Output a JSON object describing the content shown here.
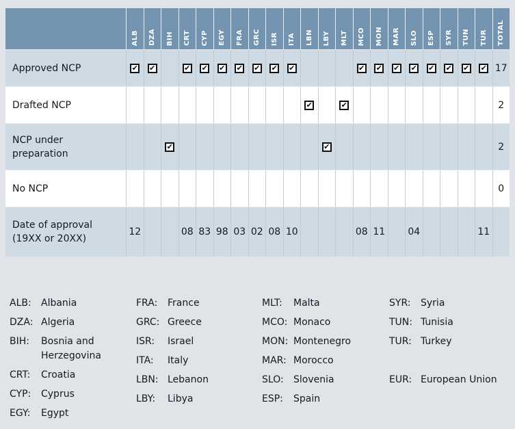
{
  "colors": {
    "header_bg": "#7294b0",
    "shaded_row_bg": "#cfdbe4",
    "plain_row_bg": "#ffffff",
    "page_bg": "#e0e4e8",
    "grid_line": "#c5c9cc",
    "header_text": "#ffffff",
    "body_text": "#15181e"
  },
  "chart_data": {
    "type": "table",
    "title": "",
    "columns": [
      "ALB",
      "DZA",
      "BIH",
      "CRT",
      "CYP",
      "EGY",
      "FRA",
      "GRC",
      "ISR",
      "ITA",
      "LBN",
      "LBY",
      "MLT",
      "MCO",
      "MON",
      "MAR",
      "SLO",
      "ESP",
      "SYR",
      "TUN",
      "TUR"
    ],
    "total_column": "TOTAL",
    "rows": [
      {
        "label": "Approved NCP",
        "kind": "check",
        "checked": [
          "ALB",
          "DZA",
          "CRT",
          "CYP",
          "EGY",
          "FRA",
          "GRC",
          "ISR",
          "ITA",
          "MCO",
          "MON",
          "MAR",
          "SLO",
          "ESP",
          "SYR",
          "TUN",
          "TUR"
        ],
        "total": "17"
      },
      {
        "label": "Drafted NCP",
        "kind": "check",
        "checked": [
          "LBN",
          "MLT"
        ],
        "total": "2"
      },
      {
        "label": "NCP under preparation",
        "kind": "check",
        "checked": [
          "BIH",
          "LBY"
        ],
        "total": "2"
      },
      {
        "label": "No NCP",
        "kind": "check",
        "checked": [],
        "total": "0"
      },
      {
        "label": "Date of approval (19XX or 20XX)",
        "kind": "text",
        "values": {
          "ALB": "12",
          "CRT": "08",
          "CYP": "83",
          "EGY": "98",
          "FRA": "03",
          "GRC": "02",
          "ISR": "08",
          "ITA": "10",
          "MCO": "08",
          "MON": "11",
          "SLO": "04",
          "TUR": "11"
        },
        "total": ""
      }
    ]
  },
  "legend": {
    "columns": [
      {
        "items": [
          {
            "code": "ALB:",
            "name": "Albania"
          },
          {
            "code": "DZA:",
            "name": "Algeria"
          },
          {
            "code": "BIH:",
            "name": "Bosnia and Herzegovina"
          },
          {
            "code": "CRT:",
            "name": "Croatia"
          },
          {
            "code": "CYP:",
            "name": "Cyprus"
          },
          {
            "code": "EGY:",
            "name": "Egypt"
          }
        ]
      },
      {
        "items": [
          {
            "code": "FRA:",
            "name": "France"
          },
          {
            "code": "GRC:",
            "name": "Greece"
          },
          {
            "code": "ISR:",
            "name": "Israel"
          },
          {
            "code": "ITA:",
            "name": "Italy"
          },
          {
            "code": "LBN:",
            "name": "Lebanon"
          },
          {
            "code": "LBY:",
            "name": "Libya"
          }
        ]
      },
      {
        "items": [
          {
            "code": "MLT:",
            "name": "Malta"
          },
          {
            "code": "MCO:",
            "name": "Monaco"
          },
          {
            "code": "MON:",
            "name": "Montenegro"
          },
          {
            "code": "MAR:",
            "name": "Morocco"
          },
          {
            "code": "SLO:",
            "name": "Slovenia"
          },
          {
            "code": "ESP:",
            "name": "Spain"
          }
        ]
      },
      {
        "items": [
          {
            "code": "SYR:",
            "name": "Syria"
          },
          {
            "code": "TUN:",
            "name": "Tunisia"
          },
          {
            "code": "TUR:",
            "name": "Turkey"
          },
          {
            "spacer": true
          },
          {
            "code": "EUR:",
            "name": "European Union"
          }
        ]
      }
    ]
  },
  "check_glyph": "✔"
}
